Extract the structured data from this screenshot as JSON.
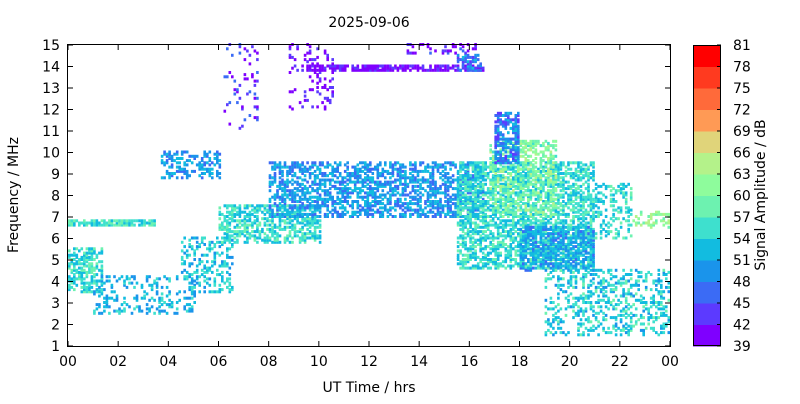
{
  "chart_data": {
    "type": "heatmap",
    "title": "2025-09-06",
    "xlabel": "UT Time / hrs",
    "ylabel": "Frequency / MHz",
    "xlim": [
      0,
      24
    ],
    "ylim": [
      1,
      15
    ],
    "x_ticks": [
      "00",
      "02",
      "04",
      "06",
      "08",
      "10",
      "12",
      "14",
      "16",
      "18",
      "20",
      "22",
      "00"
    ],
    "y_ticks": [
      1,
      2,
      3,
      4,
      5,
      6,
      7,
      8,
      9,
      10,
      11,
      12,
      13,
      14,
      15
    ],
    "grid": false,
    "colorbar": {
      "label": "Signal Amplitude / dB",
      "range": [
        39,
        81
      ],
      "ticks": [
        39,
        42,
        45,
        48,
        51,
        54,
        57,
        60,
        63,
        66,
        69,
        72,
        75,
        78,
        81
      ],
      "colors": [
        "#7f00ff",
        "#5c3aff",
        "#3b6bf5",
        "#1a94eb",
        "#12bce0",
        "#3ee0ce",
        "#6df2b0",
        "#8efc9c",
        "#b4f28a",
        "#e0d47a",
        "#ff9a55",
        "#ff6a3a",
        "#ff3a1f",
        "#ff0000"
      ]
    },
    "bands": [
      {
        "x": [
          0.0,
          3.5
        ],
        "f": [
          6.6,
          6.8
        ],
        "db": 56,
        "density": 0.8
      },
      {
        "x": [
          0.0,
          1.3
        ],
        "f": [
          3.5,
          5.5
        ],
        "db": 55,
        "density": 0.6
      },
      {
        "x": [
          1.0,
          5.0
        ],
        "f": [
          2.5,
          4.2
        ],
        "db": 52,
        "density": 0.25
      },
      {
        "x": [
          3.7,
          6.0
        ],
        "f": [
          8.8,
          10.0
        ],
        "db": 50,
        "density": 0.4
      },
      {
        "x": [
          4.5,
          6.5
        ],
        "f": [
          3.5,
          6.0
        ],
        "db": 53,
        "density": 0.35
      },
      {
        "x": [
          6.0,
          10.0
        ],
        "f": [
          5.8,
          7.5
        ],
        "db": 55,
        "density": 0.55
      },
      {
        "x": [
          8.0,
          16.5
        ],
        "f": [
          7.0,
          9.5
        ],
        "db": 50,
        "density": 0.55
      },
      {
        "x": [
          9.5,
          16.5
        ],
        "f": [
          13.8,
          14.0
        ],
        "db": 40,
        "density": 0.8
      },
      {
        "x": [
          15.5,
          16.5
        ],
        "f": [
          13.8,
          14.5
        ],
        "db": 48,
        "density": 0.6
      },
      {
        "x": [
          15.5,
          21.0
        ],
        "f": [
          4.6,
          9.5
        ],
        "db": 55,
        "density": 0.6
      },
      {
        "x": [
          16.8,
          19.5
        ],
        "f": [
          7.0,
          10.5
        ],
        "db": 60,
        "density": 0.45
      },
      {
        "x": [
          17.0,
          18.0
        ],
        "f": [
          9.5,
          11.8
        ],
        "db": 48,
        "density": 0.7
      },
      {
        "x": [
          18.0,
          21.0
        ],
        "f": [
          4.5,
          6.5
        ],
        "db": 51,
        "density": 0.6
      },
      {
        "x": [
          19.0,
          24.0
        ],
        "f": [
          1.5,
          4.5
        ],
        "db": 54,
        "density": 0.3
      },
      {
        "x": [
          21.0,
          22.5
        ],
        "f": [
          6.0,
          8.5
        ],
        "db": 55,
        "density": 0.3
      },
      {
        "x": [
          6.2,
          7.5
        ],
        "f": [
          11.0,
          15.0
        ],
        "db": 43,
        "density": 0.12
      },
      {
        "x": [
          8.8,
          10.5
        ],
        "f": [
          12.0,
          15.0
        ],
        "db": 41,
        "density": 0.15
      },
      {
        "x": [
          13.5,
          16.2
        ],
        "f": [
          14.6,
          15.0
        ],
        "db": 42,
        "density": 0.25
      },
      {
        "x": [
          22.5,
          24.0
        ],
        "f": [
          6.5,
          7.2
        ],
        "db": 62,
        "density": 0.3
      }
    ]
  }
}
